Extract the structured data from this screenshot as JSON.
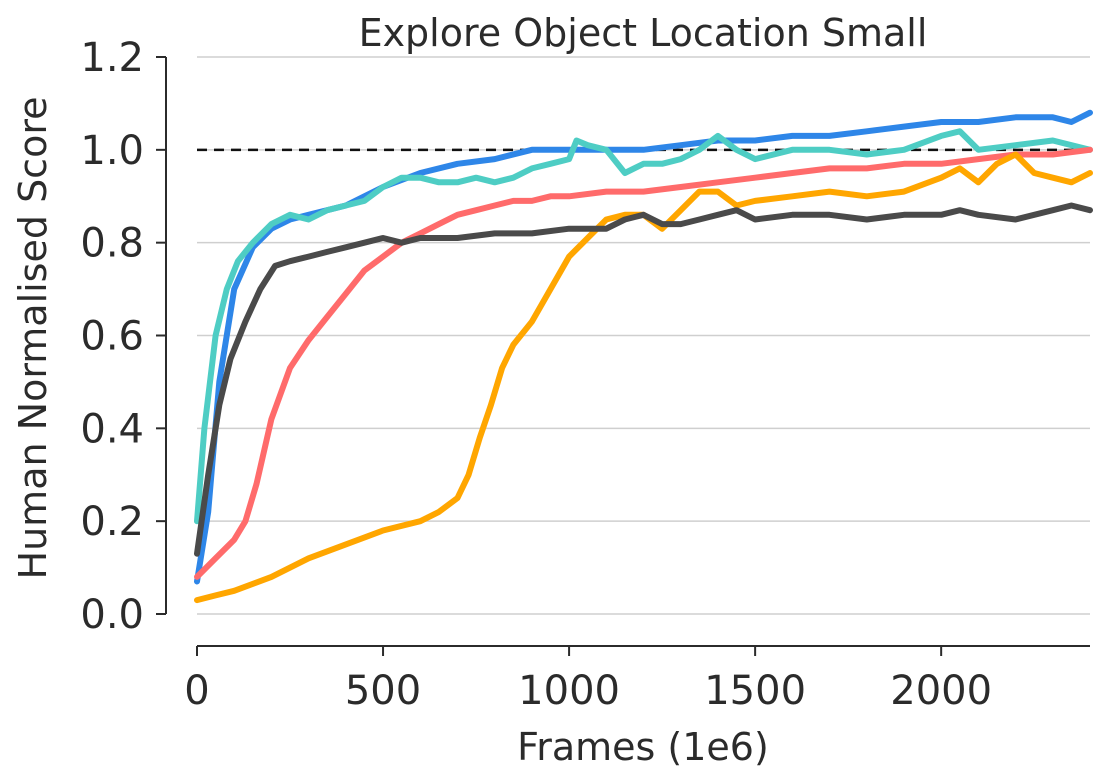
{
  "chart_data": {
    "type": "line",
    "title": "Explore Object Location Small",
    "xlabel": "Frames (1e6)",
    "ylabel": "Human Normalised Score",
    "xlim": [
      0,
      2400
    ],
    "ylim": [
      0.0,
      1.2
    ],
    "xticks": [
      0,
      500,
      1000,
      1500,
      2000
    ],
    "xtick_labels": [
      "0",
      "500",
      "1000",
      "1500",
      "2000"
    ],
    "yticks": [
      0.0,
      0.2,
      0.4,
      0.6,
      0.8,
      1.0,
      1.2
    ],
    "ytick_labels": [
      "0.0",
      "0.2",
      "0.4",
      "0.6",
      "0.8",
      "1.0",
      "1.2"
    ],
    "grid": "horizontal",
    "reference_line": {
      "y": 1.0,
      "style": "dashed",
      "color": "#111111"
    },
    "series": [
      {
        "color": "#2e86e8",
        "x": [
          0,
          30,
          60,
          100,
          150,
          200,
          250,
          300,
          400,
          500,
          600,
          700,
          800,
          900,
          1000,
          1100,
          1200,
          1300,
          1400,
          1500,
          1600,
          1700,
          1800,
          1900,
          2000,
          2100,
          2200,
          2300,
          2350,
          2400
        ],
        "y": [
          0.07,
          0.22,
          0.5,
          0.7,
          0.79,
          0.83,
          0.85,
          0.86,
          0.88,
          0.92,
          0.95,
          0.97,
          0.98,
          1.0,
          1.0,
          1.0,
          1.0,
          1.01,
          1.02,
          1.02,
          1.03,
          1.03,
          1.04,
          1.05,
          1.06,
          1.06,
          1.07,
          1.07,
          1.06,
          1.08
        ]
      },
      {
        "color": "#4ecdc4",
        "x": [
          0,
          20,
          50,
          80,
          110,
          150,
          200,
          250,
          300,
          350,
          400,
          450,
          500,
          550,
          600,
          650,
          700,
          750,
          800,
          850,
          900,
          950,
          1000,
          1020,
          1050,
          1100,
          1150,
          1200,
          1250,
          1300,
          1350,
          1400,
          1450,
          1500,
          1600,
          1700,
          1800,
          1900,
          2000,
          2050,
          2100,
          2200,
          2300,
          2400
        ],
        "y": [
          0.2,
          0.4,
          0.6,
          0.7,
          0.76,
          0.8,
          0.84,
          0.86,
          0.85,
          0.87,
          0.88,
          0.89,
          0.92,
          0.94,
          0.94,
          0.93,
          0.93,
          0.94,
          0.93,
          0.94,
          0.96,
          0.97,
          0.98,
          1.02,
          1.01,
          1.0,
          0.95,
          0.97,
          0.97,
          0.98,
          1.0,
          1.03,
          1.0,
          0.98,
          1.0,
          1.0,
          0.99,
          1.0,
          1.03,
          1.04,
          1.0,
          1.01,
          1.02,
          1.0
        ]
      },
      {
        "color": "#ff6b6b",
        "x": [
          0,
          50,
          100,
          130,
          160,
          200,
          250,
          300,
          350,
          400,
          450,
          500,
          550,
          600,
          650,
          700,
          750,
          800,
          850,
          900,
          950,
          1000,
          1100,
          1200,
          1300,
          1400,
          1500,
          1600,
          1700,
          1800,
          1900,
          2000,
          2100,
          2200,
          2300,
          2400
        ],
        "y": [
          0.08,
          0.12,
          0.16,
          0.2,
          0.28,
          0.42,
          0.53,
          0.59,
          0.64,
          0.69,
          0.74,
          0.77,
          0.8,
          0.82,
          0.84,
          0.86,
          0.87,
          0.88,
          0.89,
          0.89,
          0.9,
          0.9,
          0.91,
          0.91,
          0.92,
          0.93,
          0.94,
          0.95,
          0.96,
          0.96,
          0.97,
          0.97,
          0.98,
          0.99,
          0.99,
          1.0
        ]
      },
      {
        "color": "#ffa600",
        "x": [
          0,
          50,
          100,
          200,
          300,
          400,
          500,
          600,
          650,
          700,
          730,
          760,
          790,
          820,
          850,
          900,
          950,
          1000,
          1050,
          1100,
          1150,
          1200,
          1250,
          1300,
          1350,
          1400,
          1450,
          1500,
          1600,
          1700,
          1800,
          1900,
          2000,
          2050,
          2100,
          2150,
          2200,
          2250,
          2300,
          2350,
          2400
        ],
        "y": [
          0.03,
          0.04,
          0.05,
          0.08,
          0.12,
          0.15,
          0.18,
          0.2,
          0.22,
          0.25,
          0.3,
          0.38,
          0.45,
          0.53,
          0.58,
          0.63,
          0.7,
          0.77,
          0.81,
          0.85,
          0.86,
          0.86,
          0.83,
          0.87,
          0.91,
          0.91,
          0.88,
          0.89,
          0.9,
          0.91,
          0.9,
          0.91,
          0.94,
          0.96,
          0.93,
          0.97,
          0.99,
          0.95,
          0.94,
          0.93,
          0.95
        ]
      },
      {
        "color": "#4a4a4a",
        "x": [
          0,
          30,
          60,
          90,
          130,
          170,
          210,
          250,
          300,
          350,
          400,
          450,
          500,
          550,
          600,
          700,
          800,
          900,
          1000,
          1100,
          1150,
          1200,
          1250,
          1300,
          1350,
          1400,
          1450,
          1500,
          1600,
          1700,
          1800,
          1900,
          2000,
          2050,
          2100,
          2200,
          2300,
          2350,
          2400
        ],
        "y": [
          0.13,
          0.3,
          0.45,
          0.55,
          0.63,
          0.7,
          0.75,
          0.76,
          0.77,
          0.78,
          0.79,
          0.8,
          0.81,
          0.8,
          0.81,
          0.81,
          0.82,
          0.82,
          0.83,
          0.83,
          0.85,
          0.86,
          0.84,
          0.84,
          0.85,
          0.86,
          0.87,
          0.85,
          0.86,
          0.86,
          0.85,
          0.86,
          0.86,
          0.87,
          0.86,
          0.85,
          0.87,
          0.88,
          0.87
        ]
      }
    ]
  }
}
